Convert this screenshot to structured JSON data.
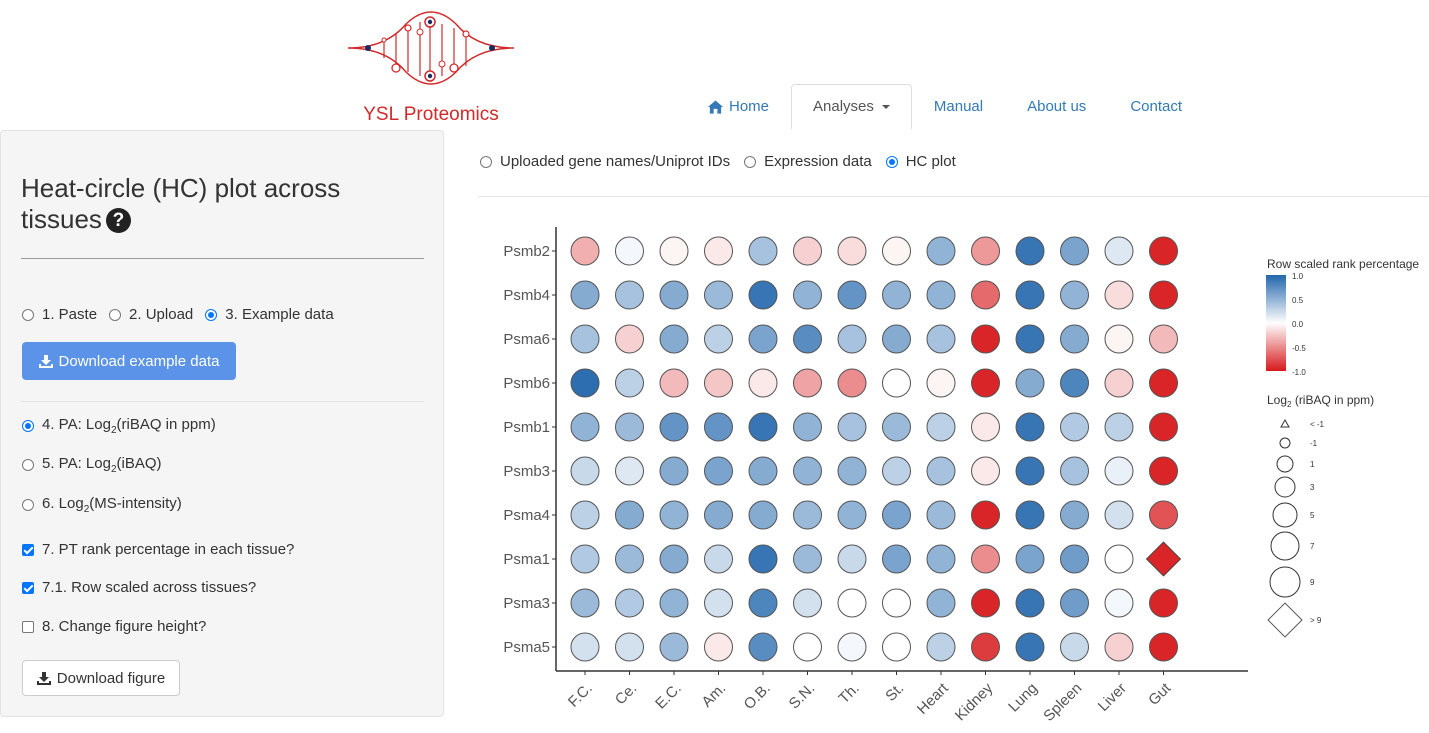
{
  "brand": {
    "name": "YSL Proteomics",
    "logo_color": "#d12a2a"
  },
  "nav": {
    "items": [
      {
        "label": "Home",
        "icon": "home-icon"
      },
      {
        "label": "Analyses",
        "icon": "caret-down-icon",
        "active": true
      },
      {
        "label": "Manual"
      },
      {
        "label": "About us"
      },
      {
        "label": "Contact"
      }
    ]
  },
  "sidebar": {
    "title": "Heat-circle (HC) plot across tissues",
    "input_options": [
      "1. Paste",
      "2. Upload",
      "3. Example data"
    ],
    "input_selected": "3. Example data",
    "download_example_label": "Download example data",
    "pa_options": [
      {
        "pre": "4. PA: Log",
        "sub": "2",
        "post": "(riBAQ in ppm)",
        "selected": true
      },
      {
        "pre": "5. PA: Log",
        "sub": "2",
        "post": "(iBAQ)",
        "selected": false
      },
      {
        "pre": "6. Log",
        "sub": "2",
        "post": "(MS-intensity)",
        "selected": false
      }
    ],
    "checkboxes": [
      {
        "label": "7. PT rank percentage in each tissue?",
        "checked": true
      },
      {
        "label": "7.1. Row scaled across tissues?",
        "checked": true
      },
      {
        "label": "8. Change figure height?",
        "checked": false
      }
    ],
    "download_figure_label": "Download figure"
  },
  "main": {
    "tabs": [
      "Uploaded gene names/Uniprot IDs",
      "Expression data",
      "HC plot"
    ],
    "tab_selected": "HC plot"
  },
  "chart_data": {
    "type": "heatmap",
    "title": "",
    "rows": [
      "Psmb2",
      "Psmb4",
      "Psma6",
      "Psmb6",
      "Psmb1",
      "Psmb3",
      "Psma4",
      "Psma1",
      "Psma3",
      "Psma5"
    ],
    "columns": [
      "F.C.",
      "Ce.",
      "E.C.",
      "Am.",
      "O.B.",
      "S.N.",
      "Th.",
      "St.",
      "Heart",
      "Kidney",
      "Lung",
      "Spleen",
      "Liver",
      "Gut"
    ],
    "color_values": [
      [
        -0.35,
        0.05,
        -0.05,
        -0.1,
        0.4,
        -0.2,
        -0.15,
        -0.05,
        0.5,
        -0.45,
        0.9,
        0.6,
        0.15,
        -0.95
      ],
      [
        0.55,
        0.4,
        0.55,
        0.45,
        0.9,
        0.5,
        0.7,
        0.5,
        0.5,
        -0.65,
        0.9,
        0.5,
        -0.15,
        -0.95
      ],
      [
        0.4,
        -0.2,
        0.55,
        0.3,
        0.6,
        0.75,
        0.4,
        0.55,
        0.4,
        -0.95,
        0.9,
        0.55,
        -0.05,
        -0.3
      ],
      [
        0.95,
        0.3,
        -0.3,
        -0.25,
        -0.1,
        -0.4,
        -0.5,
        0.0,
        -0.05,
        -0.95,
        0.55,
        0.8,
        -0.2,
        -0.95
      ],
      [
        0.5,
        0.45,
        0.7,
        0.7,
        0.9,
        0.5,
        0.4,
        0.45,
        0.3,
        -0.1,
        0.9,
        0.35,
        0.3,
        -0.95
      ],
      [
        0.25,
        0.15,
        0.55,
        0.6,
        0.55,
        0.5,
        0.5,
        0.3,
        0.4,
        -0.1,
        0.9,
        0.4,
        0.1,
        -0.95
      ],
      [
        0.3,
        0.55,
        0.5,
        0.55,
        0.55,
        0.45,
        0.5,
        0.6,
        0.45,
        -0.95,
        0.9,
        0.55,
        0.2,
        -0.75
      ],
      [
        0.35,
        0.45,
        0.55,
        0.25,
        0.9,
        0.45,
        0.25,
        0.6,
        0.5,
        -0.5,
        0.6,
        0.65,
        0.0,
        -0.95
      ],
      [
        0.45,
        0.35,
        0.5,
        0.2,
        0.8,
        0.2,
        0.0,
        0.0,
        0.5,
        -0.95,
        0.9,
        0.65,
        0.05,
        -0.95
      ],
      [
        0.2,
        0.2,
        0.45,
        -0.1,
        0.75,
        0.0,
        0.05,
        0.0,
        0.3,
        -0.85,
        0.9,
        0.25,
        -0.2,
        -0.95
      ]
    ],
    "size_legend_over_9": [
      [
        7,
        13
      ]
    ],
    "color_legend": {
      "title": "Row scaled rank percentage",
      "ticks": [
        "1.0",
        "0.5",
        "0.0",
        "-0.5",
        "-1.0"
      ],
      "low": "#d7191c",
      "mid": "#ffffff",
      "high": "#2166ac"
    },
    "size_legend": {
      "title_pre": "Log",
      "title_sub": "2",
      "title_post": " (riBAQ in ppm)",
      "labels": [
        "< -1",
        "-1",
        "1",
        "3",
        "5",
        "7",
        "9",
        "> 9"
      ]
    }
  }
}
